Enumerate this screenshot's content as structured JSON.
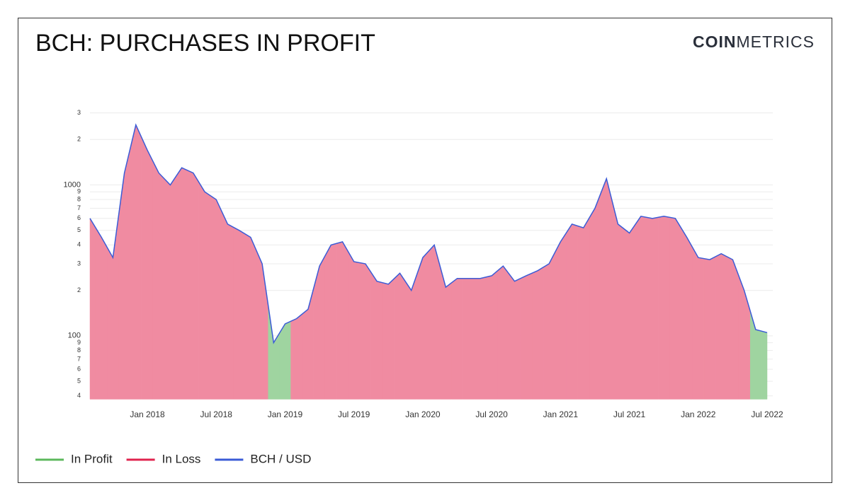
{
  "brand": {
    "bold": "COIN",
    "light": "METRICS"
  },
  "chart_data": {
    "type": "area",
    "title": "BCH: PURCHASES IN PROFIT",
    "log_scale": true,
    "grid": true,
    "legend": "bottom-left",
    "x": [
      "2017-08",
      "2017-09",
      "2017-10",
      "2017-11",
      "2017-12",
      "2018-01",
      "2018-02",
      "2018-03",
      "2018-04",
      "2018-05",
      "2018-06",
      "2018-07",
      "2018-08",
      "2018-09",
      "2018-10",
      "2018-11",
      "2018-12",
      "2019-01",
      "2019-02",
      "2019-03",
      "2019-04",
      "2019-05",
      "2019-06",
      "2019-07",
      "2019-08",
      "2019-09",
      "2019-10",
      "2019-11",
      "2019-12",
      "2020-01",
      "2020-02",
      "2020-03",
      "2020-04",
      "2020-05",
      "2020-06",
      "2020-07",
      "2020-08",
      "2020-09",
      "2020-10",
      "2020-11",
      "2020-12",
      "2021-01",
      "2021-02",
      "2021-03",
      "2021-04",
      "2021-05",
      "2021-06",
      "2021-07",
      "2021-08",
      "2021-09",
      "2021-10",
      "2021-11",
      "2021-12",
      "2022-01",
      "2022-02",
      "2022-03",
      "2022-04",
      "2022-05",
      "2022-06",
      "2022-07"
    ],
    "xlim": [
      "2017-08",
      "2022-07"
    ],
    "xticks": [
      {
        "value": "2018-01",
        "label": "Jan 2018"
      },
      {
        "value": "2018-07",
        "label": "Jul 2018"
      },
      {
        "value": "2019-01",
        "label": "Jan 2019"
      },
      {
        "value": "2019-07",
        "label": "Jul 2019"
      },
      {
        "value": "2020-01",
        "label": "Jan 2020"
      },
      {
        "value": "2020-07",
        "label": "Jul 2020"
      },
      {
        "value": "2021-01",
        "label": "Jan 2021"
      },
      {
        "value": "2021-07",
        "label": "Jul 2021"
      },
      {
        "value": "2022-01",
        "label": "Jan 2022"
      },
      {
        "value": "2022-07",
        "label": "Jul 2022"
      }
    ],
    "ylim": [
      38,
      4000
    ],
    "yticks": [
      {
        "value": 40,
        "label": "4"
      },
      {
        "value": 50,
        "label": "5"
      },
      {
        "value": 60,
        "label": "6"
      },
      {
        "value": 70,
        "label": "7"
      },
      {
        "value": 80,
        "label": "8"
      },
      {
        "value": 90,
        "label": "9"
      },
      100,
      {
        "value": 200,
        "label": "2"
      },
      {
        "value": 300,
        "label": "3"
      },
      {
        "value": 400,
        "label": "4"
      },
      {
        "value": 500,
        "label": "5"
      },
      {
        "value": 600,
        "label": "6"
      },
      {
        "value": 700,
        "label": "7"
      },
      {
        "value": 800,
        "label": "8"
      },
      {
        "value": 900,
        "label": "9"
      },
      1000,
      {
        "value": 2000,
        "label": "2"
      },
      {
        "value": 3000,
        "label": "3"
      }
    ],
    "series": [
      {
        "name": "In Profit",
        "color": "#5cb85c",
        "fill": "#9fd4a0",
        "values": [
          null,
          null,
          null,
          null,
          null,
          null,
          null,
          null,
          null,
          null,
          null,
          null,
          null,
          null,
          null,
          null,
          90,
          120,
          null,
          null,
          null,
          null,
          null,
          null,
          null,
          null,
          null,
          null,
          null,
          null,
          null,
          null,
          null,
          null,
          null,
          null,
          null,
          null,
          null,
          null,
          null,
          null,
          null,
          null,
          null,
          null,
          null,
          null,
          null,
          null,
          null,
          null,
          null,
          null,
          null,
          null,
          null,
          null,
          110,
          105
        ]
      },
      {
        "name": "In Loss",
        "color": "#e0234e",
        "fill": "#f08ba1",
        "values": [
          600,
          450,
          330,
          1200,
          2500,
          1700,
          1200,
          1000,
          1300,
          1200,
          900,
          800,
          550,
          500,
          450,
          300,
          null,
          null,
          130,
          150,
          290,
          400,
          420,
          310,
          300,
          230,
          220,
          260,
          200,
          330,
          400,
          210,
          240,
          240,
          240,
          250,
          290,
          230,
          250,
          270,
          300,
          420,
          550,
          520,
          700,
          1100,
          550,
          480,
          620,
          600,
          620,
          600,
          450,
          330,
          320,
          350,
          320,
          200,
          null,
          null
        ]
      },
      {
        "name": "BCH / USD",
        "color": "#3b5bd6",
        "values": [
          600,
          450,
          330,
          1200,
          2500,
          1700,
          1200,
          1000,
          1300,
          1200,
          900,
          800,
          550,
          500,
          450,
          300,
          90,
          120,
          130,
          150,
          290,
          400,
          420,
          310,
          300,
          230,
          220,
          260,
          200,
          330,
          400,
          210,
          240,
          240,
          240,
          250,
          290,
          230,
          250,
          270,
          300,
          420,
          550,
          520,
          700,
          1100,
          550,
          480,
          620,
          600,
          620,
          600,
          450,
          330,
          320,
          350,
          320,
          200,
          110,
          105
        ]
      }
    ]
  }
}
